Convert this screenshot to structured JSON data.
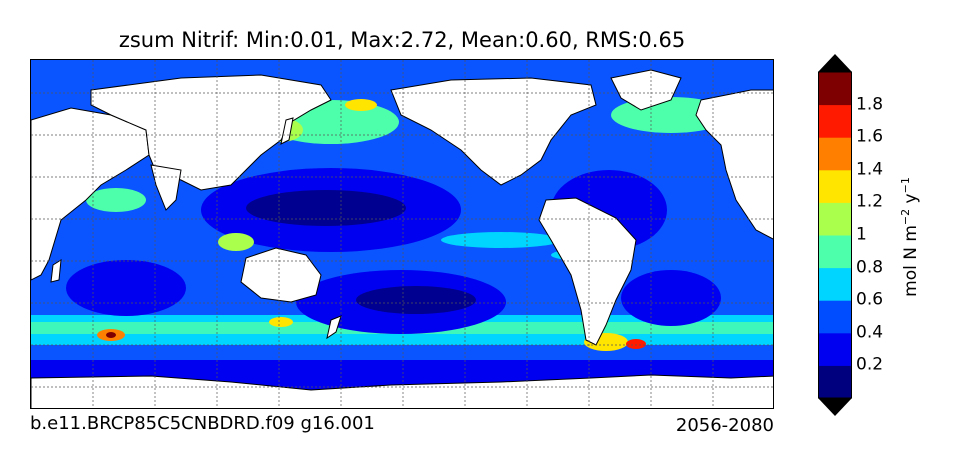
{
  "title": "zsum Nitrif: Min:0.01, Max:2.72, Mean:0.60, RMS:0.65",
  "caption_left": "b.e11.BRCP85C5CNBDRD.f09 g16.001",
  "caption_right": "2056-2080",
  "colorbar": {
    "label_main": "mol N m",
    "label_sup1": "−2",
    "label_mid": " y",
    "label_sup2": "−1",
    "ticks": [
      "0.2",
      "0.4",
      "0.6",
      "0.8",
      "1",
      "1.2",
      "1.4",
      "1.6",
      "1.8"
    ],
    "colors": [
      "#00007f",
      "#0000f1",
      "#004dff",
      "#00d5ff",
      "#4dffaa",
      "#aaff4d",
      "#ffe500",
      "#ff8000",
      "#ff1a00",
      "#7f0000"
    ]
  },
  "map": {
    "land_color": "#ffffff",
    "coast_color": "#000000",
    "grid": true
  }
}
